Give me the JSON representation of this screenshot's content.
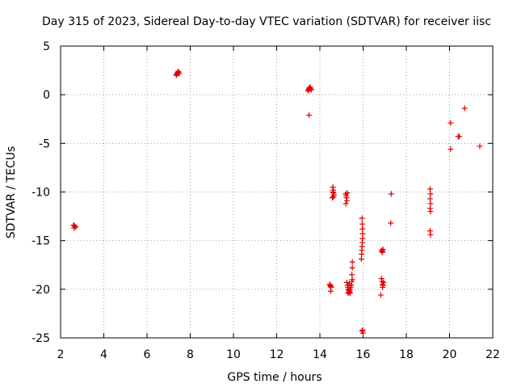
{
  "chart_data": {
    "type": "scatter",
    "title": "Day 315 of 2023, Sidereal Day-to-day VTEC variation (SDTVAR) for receiver iisc",
    "xlabel": "GPS time / hours",
    "ylabel": "SDTVAR / TECUs",
    "xlim": [
      2,
      22
    ],
    "ylim": [
      -25,
      5
    ],
    "xticks": [
      2,
      4,
      6,
      8,
      10,
      12,
      14,
      16,
      18,
      20,
      22
    ],
    "yticks": [
      -25,
      -20,
      -15,
      -10,
      -5,
      0,
      5
    ],
    "grid": true,
    "color": "#e00000",
    "marker": "plus",
    "series": [
      {
        "name": "SDTVAR",
        "points": [
          [
            2.6,
            -13.4
          ],
          [
            2.65,
            -13.5
          ],
          [
            2.7,
            -13.6
          ],
          [
            2.62,
            -13.7
          ],
          [
            7.35,
            2.0
          ],
          [
            7.38,
            2.1
          ],
          [
            7.4,
            2.2
          ],
          [
            7.43,
            2.3
          ],
          [
            7.45,
            2.4
          ],
          [
            7.5,
            2.2
          ],
          [
            13.45,
            0.4
          ],
          [
            13.48,
            0.5
          ],
          [
            13.5,
            0.6
          ],
          [
            13.52,
            0.7
          ],
          [
            13.55,
            0.8
          ],
          [
            13.58,
            0.6
          ],
          [
            13.6,
            0.5
          ],
          [
            13.5,
            -2.1
          ],
          [
            14.45,
            -19.5
          ],
          [
            14.48,
            -19.6
          ],
          [
            14.5,
            -19.7
          ],
          [
            14.52,
            -19.8
          ],
          [
            14.5,
            -20.2
          ],
          [
            14.6,
            -9.5
          ],
          [
            14.62,
            -9.8
          ],
          [
            14.63,
            -10.1
          ],
          [
            14.65,
            -10.3
          ],
          [
            14.62,
            -10.5
          ],
          [
            14.58,
            -10.6
          ],
          [
            14.6,
            -10.0
          ],
          [
            15.2,
            -10.2
          ],
          [
            15.22,
            -10.4
          ],
          [
            15.23,
            -10.6
          ],
          [
            15.25,
            -10.9
          ],
          [
            15.2,
            -11.2
          ],
          [
            15.27,
            -10.1
          ],
          [
            15.25,
            -19.3
          ],
          [
            15.28,
            -19.6
          ],
          [
            15.3,
            -19.8
          ],
          [
            15.32,
            -20.0
          ],
          [
            15.34,
            -20.1
          ],
          [
            15.35,
            -20.3
          ],
          [
            15.38,
            -20.2
          ],
          [
            15.4,
            -20.0
          ],
          [
            15.42,
            -19.8
          ],
          [
            15.45,
            -19.6
          ],
          [
            15.36,
            -19.4
          ],
          [
            15.48,
            -19.2
          ],
          [
            15.5,
            -19.0
          ],
          [
            15.3,
            -20.4
          ],
          [
            15.4,
            -20.4
          ],
          [
            15.5,
            -17.2
          ],
          [
            15.5,
            -17.8
          ],
          [
            15.48,
            -18.5
          ],
          [
            15.95,
            -12.7
          ],
          [
            15.96,
            -13.3
          ],
          [
            15.97,
            -13.8
          ],
          [
            15.98,
            -14.3
          ],
          [
            15.97,
            -14.8
          ],
          [
            15.96,
            -15.2
          ],
          [
            15.95,
            -15.6
          ],
          [
            15.94,
            -16.0
          ],
          [
            15.93,
            -16.4
          ],
          [
            15.92,
            -16.9
          ],
          [
            15.95,
            -24.3
          ],
          [
            16.0,
            -24.5
          ],
          [
            15.98,
            -24.2
          ],
          [
            16.85,
            -16.0
          ],
          [
            16.9,
            -16.1
          ],
          [
            16.88,
            -16.2
          ],
          [
            16.92,
            -15.9
          ],
          [
            16.85,
            -18.9
          ],
          [
            16.88,
            -19.2
          ],
          [
            16.9,
            -19.5
          ],
          [
            16.92,
            -19.6
          ],
          [
            16.95,
            -19.3
          ],
          [
            16.9,
            -19.8
          ],
          [
            16.82,
            -20.6
          ],
          [
            17.3,
            -10.2
          ],
          [
            17.28,
            -13.2
          ],
          [
            19.1,
            -9.7
          ],
          [
            19.12,
            -10.2
          ],
          [
            19.1,
            -10.7
          ],
          [
            19.12,
            -11.2
          ],
          [
            19.1,
            -11.7
          ],
          [
            19.12,
            -12.0
          ],
          [
            19.1,
            -14.0
          ],
          [
            19.12,
            -14.4
          ],
          [
            20.05,
            -2.9
          ],
          [
            20.05,
            -5.6
          ],
          [
            20.4,
            -4.3
          ],
          [
            20.45,
            -4.3
          ],
          [
            20.7,
            -1.4
          ],
          [
            21.4,
            -5.3
          ]
        ]
      }
    ]
  }
}
